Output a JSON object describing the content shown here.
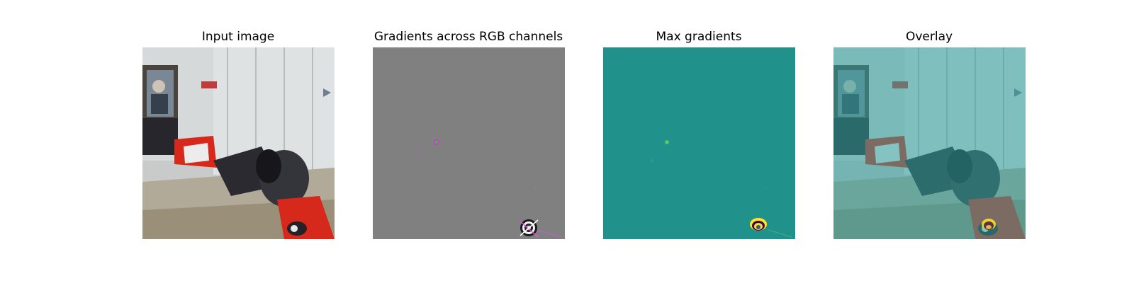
{
  "figure": {
    "panels": [
      {
        "title": "Input image"
      },
      {
        "title": "Gradients across RGB channels"
      },
      {
        "title": "Max gradients"
      },
      {
        "title": "Overlay"
      }
    ]
  },
  "colors": {
    "background": "#ffffff",
    "gradient_gray": "#808080",
    "max_gradient_teal": "#21918c",
    "overlay_tint": "#2fa39e",
    "robot_red": "#d7281c",
    "robot_black": "#2a2a30"
  }
}
